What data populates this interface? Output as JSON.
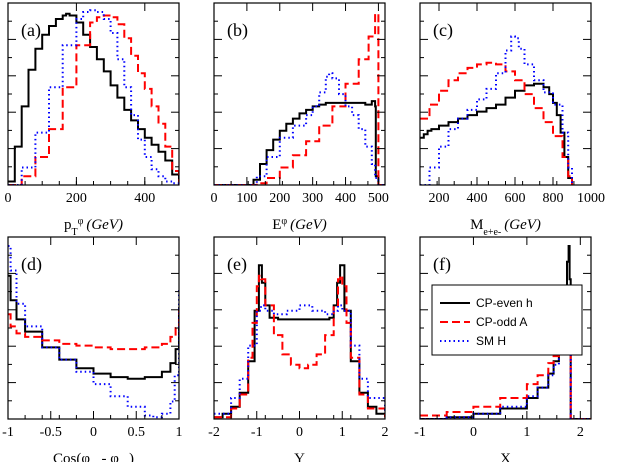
{
  "colors": {
    "cp_even": "#000000",
    "cp_odd": "#ff0000",
    "sm": "#0000ff"
  },
  "legend": {
    "entries": [
      {
        "name": "CP-even h",
        "color": "#000000",
        "dash": "solid"
      },
      {
        "name": "CP-odd A",
        "color": "#ff0000",
        "dash": "dashed"
      },
      {
        "name": "SM H",
        "color": "#0000ff",
        "dash": "dotted"
      }
    ]
  },
  "chart_data": [
    {
      "panel": "(a)",
      "type": "line",
      "xlabel_main": "p",
      "xlabel_sub": "T",
      "xlabel_sup": "φ",
      "xlabel_unit": "(GeV)",
      "xlim": [
        0,
        500
      ],
      "xticks": [
        0,
        200,
        400
      ],
      "ylim": [
        0,
        1
      ],
      "series": [
        {
          "name": "CP-even h",
          "x": [
            0,
            20,
            40,
            60,
            80,
            100,
            120,
            140,
            160,
            170,
            180,
            200,
            220,
            240,
            260,
            280,
            300,
            320,
            340,
            360,
            380,
            400,
            420,
            440,
            460,
            480,
            500
          ],
          "values": [
            0.02,
            0.22,
            0.45,
            0.66,
            0.78,
            0.86,
            0.91,
            0.95,
            0.97,
            0.98,
            0.97,
            0.93,
            0.86,
            0.79,
            0.72,
            0.65,
            0.57,
            0.5,
            0.43,
            0.37,
            0.32,
            0.27,
            0.23,
            0.19,
            0.14,
            0.06,
            0.0
          ]
        },
        {
          "name": "CP-odd A",
          "x": [
            0,
            40,
            80,
            120,
            160,
            200,
            240,
            260,
            280,
            300,
            320,
            340,
            360,
            380,
            400,
            420,
            440,
            460,
            480,
            500
          ],
          "values": [
            0.0,
            0.05,
            0.16,
            0.32,
            0.56,
            0.8,
            0.93,
            0.96,
            0.97,
            0.96,
            0.92,
            0.84,
            0.74,
            0.64,
            0.55,
            0.45,
            0.35,
            0.22,
            0.08,
            0.0
          ]
        },
        {
          "name": "SM H",
          "x": [
            0,
            40,
            80,
            120,
            160,
            200,
            220,
            240,
            260,
            280,
            300,
            320,
            340,
            360,
            380,
            400,
            420,
            440,
            460,
            480,
            500
          ],
          "values": [
            0.0,
            0.1,
            0.3,
            0.56,
            0.8,
            0.95,
            0.99,
            1.0,
            0.99,
            0.95,
            0.87,
            0.72,
            0.56,
            0.4,
            0.26,
            0.16,
            0.09,
            0.05,
            0.02,
            0.01,
            0.0
          ]
        }
      ]
    },
    {
      "panel": "(b)",
      "type": "line",
      "xlabel_main": "E",
      "xlabel_sup": "φ",
      "xlabel_unit": "(GeV)",
      "xlim": [
        0,
        520
      ],
      "xticks": [
        0,
        100,
        200,
        300,
        400,
        500
      ],
      "ylim": [
        0,
        1
      ],
      "series": [
        {
          "name": "CP-even h",
          "x": [
            0,
            110,
            120,
            140,
            160,
            180,
            200,
            220,
            240,
            260,
            280,
            300,
            320,
            340,
            360,
            380,
            400,
            420,
            440,
            460,
            480,
            490,
            492,
            500,
            520
          ],
          "values": [
            0,
            0,
            0.03,
            0.12,
            0.2,
            0.26,
            0.31,
            0.35,
            0.38,
            0.41,
            0.43,
            0.45,
            0.46,
            0.47,
            0.47,
            0.47,
            0.47,
            0.47,
            0.47,
            0.46,
            0.48,
            0.45,
            0.05,
            0.0,
            0
          ]
        },
        {
          "name": "CP-odd A",
          "x": [
            0,
            110,
            130,
            160,
            200,
            240,
            280,
            320,
            360,
            400,
            440,
            470,
            490,
            495,
            500,
            520
          ],
          "values": [
            0,
            0,
            0.01,
            0.04,
            0.1,
            0.17,
            0.25,
            0.34,
            0.45,
            0.58,
            0.72,
            0.85,
            0.98,
            0.98,
            0.0,
            0
          ]
        },
        {
          "name": "SM H",
          "x": [
            0,
            110,
            130,
            160,
            200,
            240,
            280,
            300,
            320,
            340,
            350,
            360,
            380,
            400,
            420,
            440,
            460,
            480,
            490,
            500,
            520
          ],
          "values": [
            0,
            0,
            0.05,
            0.16,
            0.27,
            0.34,
            0.4,
            0.45,
            0.53,
            0.62,
            0.64,
            0.61,
            0.52,
            0.45,
            0.4,
            0.32,
            0.22,
            0.12,
            0.04,
            0.0,
            0
          ]
        }
      ]
    },
    {
      "panel": "(c)",
      "type": "line",
      "xlabel_main": "M",
      "xlabel_sub": "e+e-",
      "xlabel_unit": "(GeV)",
      "xlim": [
        100,
        1000
      ],
      "xticks": [
        200,
        400,
        600,
        800,
        1000
      ],
      "ylim": [
        0,
        1
      ],
      "series": [
        {
          "name": "CP-even h",
          "x": [
            100,
            120,
            140,
            160,
            200,
            250,
            300,
            350,
            400,
            450,
            500,
            550,
            600,
            650,
            700,
            720,
            750,
            780,
            800,
            820,
            840,
            860,
            880,
            900
          ],
          "values": [
            0.27,
            0.29,
            0.31,
            0.32,
            0.34,
            0.36,
            0.38,
            0.4,
            0.42,
            0.44,
            0.46,
            0.5,
            0.54,
            0.57,
            0.58,
            0.58,
            0.56,
            0.52,
            0.47,
            0.4,
            0.3,
            0.16,
            0.04,
            0.0
          ]
        },
        {
          "name": "CP-odd A",
          "x": [
            100,
            150,
            200,
            250,
            300,
            350,
            400,
            450,
            500,
            550,
            600,
            650,
            700,
            750,
            800,
            850,
            880,
            900
          ],
          "values": [
            0.38,
            0.46,
            0.54,
            0.6,
            0.64,
            0.67,
            0.69,
            0.7,
            0.69,
            0.65,
            0.6,
            0.52,
            0.44,
            0.36,
            0.28,
            0.16,
            0.05,
            0.0
          ]
        },
        {
          "name": "SM H",
          "x": [
            100,
            150,
            200,
            250,
            300,
            350,
            400,
            450,
            500,
            550,
            580,
            600,
            620,
            650,
            700,
            750,
            800,
            850,
            880,
            900
          ],
          "values": [
            0.0,
            0.1,
            0.22,
            0.32,
            0.38,
            0.43,
            0.49,
            0.55,
            0.64,
            0.77,
            0.85,
            0.84,
            0.78,
            0.69,
            0.6,
            0.53,
            0.46,
            0.3,
            0.1,
            0.0
          ]
        }
      ]
    },
    {
      "panel": "(d)",
      "type": "line",
      "xlabel_main": "Cos(φ",
      "xlabel_full": "Cos(φe- - φe+)",
      "xlim": [
        -1,
        1
      ],
      "xticks": [
        -1,
        -0.5,
        0,
        0.5,
        1
      ],
      "ylim": [
        0,
        1
      ],
      "series": [
        {
          "name": "CP-even h",
          "x": [
            -1,
            -0.97,
            -0.9,
            -0.8,
            -0.6,
            -0.4,
            -0.2,
            0,
            0.2,
            0.4,
            0.6,
            0.8,
            0.9,
            0.96,
            1
          ],
          "values": [
            0.82,
            0.68,
            0.57,
            0.5,
            0.41,
            0.34,
            0.29,
            0.26,
            0.24,
            0.23,
            0.24,
            0.27,
            0.32,
            0.4,
            0.64
          ]
        },
        {
          "name": "CP-odd A",
          "x": [
            -1,
            -0.97,
            -0.9,
            -0.8,
            -0.6,
            -0.4,
            -0.2,
            0,
            0.2,
            0.4,
            0.6,
            0.8,
            0.9,
            0.96,
            1
          ],
          "values": [
            0.6,
            0.53,
            0.49,
            0.47,
            0.45,
            0.43,
            0.42,
            0.41,
            0.4,
            0.4,
            0.41,
            0.43,
            0.47,
            0.52,
            0.62
          ]
        },
        {
          "name": "SM H",
          "x": [
            -1,
            -0.97,
            -0.9,
            -0.8,
            -0.6,
            -0.4,
            -0.2,
            0,
            0.2,
            0.4,
            0.6,
            0.7,
            0.8,
            0.9,
            0.95,
            1
          ],
          "values": [
            0.99,
            0.85,
            0.66,
            0.53,
            0.41,
            0.34,
            0.27,
            0.2,
            0.13,
            0.07,
            0.02,
            0.01,
            0.03,
            0.1,
            0.25,
            0.75
          ]
        }
      ]
    },
    {
      "panel": "(e)",
      "type": "line",
      "xlabel": "Y",
      "xlim": [
        -2,
        2
      ],
      "xticks": [
        -2,
        -1,
        0,
        1,
        2
      ],
      "ylim": [
        0,
        1
      ],
      "series": [
        {
          "name": "CP-even h",
          "x": [
            -2,
            -1.8,
            -1.6,
            -1.4,
            -1.2,
            -1.05,
            -0.95,
            -0.88,
            -0.8,
            -0.7,
            -0.5,
            -0.3,
            0,
            0.3,
            0.5,
            0.7,
            0.8,
            0.88,
            0.95,
            1.05,
            1.2,
            1.4,
            1.6,
            1.8,
            2
          ],
          "values": [
            0.01,
            0.03,
            0.07,
            0.15,
            0.33,
            0.62,
            0.88,
            0.78,
            0.65,
            0.58,
            0.57,
            0.57,
            0.57,
            0.57,
            0.57,
            0.58,
            0.65,
            0.78,
            0.88,
            0.62,
            0.33,
            0.15,
            0.07,
            0.03,
            0.01
          ]
        },
        {
          "name": "CP-odd A",
          "x": [
            -2,
            -1.6,
            -1.4,
            -1.2,
            -1.1,
            -1.0,
            -0.95,
            -0.9,
            -0.8,
            -0.6,
            -0.4,
            -0.2,
            0,
            0.2,
            0.4,
            0.6,
            0.8,
            0.9,
            0.95,
            1.0,
            1.1,
            1.2,
            1.4,
            1.6,
            2
          ],
          "values": [
            0.01,
            0.06,
            0.14,
            0.35,
            0.55,
            0.76,
            0.82,
            0.8,
            0.65,
            0.48,
            0.37,
            0.31,
            0.29,
            0.31,
            0.37,
            0.48,
            0.65,
            0.8,
            0.82,
            0.76,
            0.55,
            0.35,
            0.14,
            0.06,
            0.01
          ]
        },
        {
          "name": "SM H",
          "x": [
            -2,
            -1.6,
            -1.4,
            -1.2,
            -1.0,
            -0.9,
            -0.8,
            -0.6,
            -0.3,
            0,
            0.3,
            0.6,
            0.8,
            0.9,
            1.0,
            1.2,
            1.4,
            1.6,
            2
          ],
          "values": [
            0.03,
            0.12,
            0.23,
            0.42,
            0.62,
            0.65,
            0.62,
            0.6,
            0.62,
            0.65,
            0.62,
            0.6,
            0.62,
            0.65,
            0.62,
            0.42,
            0.23,
            0.12,
            0.03
          ]
        }
      ]
    },
    {
      "panel": "(f)",
      "type": "line",
      "xlabel": "X",
      "xlim": [
        -1,
        2.2
      ],
      "xticks": [
        -1,
        0,
        1,
        2
      ],
      "ylim": [
        0,
        1
      ],
      "series": [
        {
          "name": "CP-even h",
          "x": [
            -1,
            -0.5,
            0,
            0.5,
            1.0,
            1.2,
            1.4,
            1.5,
            1.6,
            1.65,
            1.7,
            1.75,
            1.78,
            1.8,
            1.82,
            2.2
          ],
          "values": [
            0.0,
            0.01,
            0.03,
            0.06,
            0.12,
            0.18,
            0.26,
            0.33,
            0.44,
            0.54,
            0.7,
            0.9,
            0.99,
            0.8,
            0.0,
            0.0
          ]
        },
        {
          "name": "CP-odd A",
          "x": [
            -1,
            -0.5,
            0,
            0.5,
            1.0,
            1.2,
            1.4,
            1.5,
            1.6,
            1.7,
            1.78,
            1.8,
            1.82,
            2.2
          ],
          "values": [
            0.02,
            0.04,
            0.07,
            0.12,
            0.2,
            0.25,
            0.32,
            0.36,
            0.41,
            0.46,
            0.52,
            0.45,
            0.0,
            0.0
          ]
        },
        {
          "name": "SM H",
          "x": [
            -1,
            -0.5,
            0,
            0.5,
            1.0,
            1.2,
            1.4,
            1.5,
            1.6,
            1.7,
            1.78,
            1.8,
            1.82,
            2.2
          ],
          "values": [
            0.0,
            0.01,
            0.03,
            0.07,
            0.13,
            0.18,
            0.25,
            0.31,
            0.38,
            0.45,
            0.5,
            0.48,
            0.0,
            0.0
          ]
        }
      ]
    }
  ]
}
